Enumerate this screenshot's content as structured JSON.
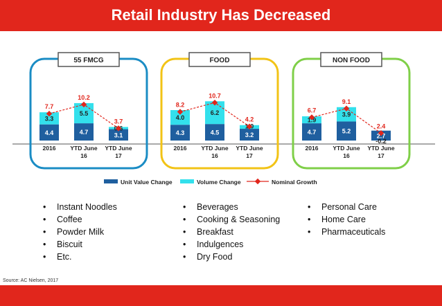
{
  "header": {
    "title": "Retail Industry Has Decreased"
  },
  "colors": {
    "unit_value": "#1f5f9f",
    "volume": "#33e0ec",
    "nominal": "#e1261c",
    "fmcg_frame": "#1a8cc4",
    "food_frame": "#f2c316",
    "nonfood_frame": "#7fcf48",
    "title_bar": "#e1261c"
  },
  "chart_data": [
    {
      "type": "bar",
      "panel": "55 FMCG",
      "categories": [
        "2016",
        "YTD June 16",
        "YTD June 17"
      ],
      "series": [
        {
          "name": "Unit Value Change",
          "values": [
            4.4,
            4.7,
            3.1
          ]
        },
        {
          "name": "Volume Change",
          "values": [
            3.3,
            5.5,
            0.6
          ]
        },
        {
          "name": "Nominal Growth",
          "values": [
            7.7,
            10.2,
            3.7
          ]
        }
      ]
    },
    {
      "type": "bar",
      "panel": "FOOD",
      "categories": [
        "2016",
        "YTD June 16",
        "YTD June 17"
      ],
      "series": [
        {
          "name": "Unit Value Change",
          "values": [
            4.3,
            4.5,
            3.2
          ]
        },
        {
          "name": "Volume Change",
          "values": [
            4.0,
            6.2,
            1.0
          ]
        },
        {
          "name": "Nominal Growth",
          "values": [
            8.2,
            10.7,
            4.2
          ]
        }
      ]
    },
    {
      "type": "bar",
      "panel": "NON FOOD",
      "categories": [
        "2016",
        "YTD June 16",
        "YTD June 17"
      ],
      "series": [
        {
          "name": "Unit Value Change",
          "values": [
            4.7,
            5.2,
            2.7
          ]
        },
        {
          "name": "Volume Change",
          "values": [
            1.9,
            3.9,
            -0.2
          ]
        },
        {
          "name": "Nominal Growth",
          "values": [
            6.7,
            9.1,
            2.4
          ]
        }
      ]
    }
  ],
  "legend": {
    "items": [
      "Unit Value Change",
      "Volume Change",
      "Nominal Growth"
    ]
  },
  "bullets": {
    "fmcg": [
      "Instant Noodles",
      "Coffee",
      "Powder Milk",
      "Biscuit",
      "Etc."
    ],
    "food": [
      "Beverages",
      "Cooking & Seasoning",
      "Breakfast",
      "Indulgences",
      "Dry Food"
    ],
    "nonfood": [
      "Personal Care",
      "Home Care",
      "Pharmaceuticals"
    ]
  },
  "bullet_char": "•",
  "source": "Source: AC Nielsen, 2017"
}
